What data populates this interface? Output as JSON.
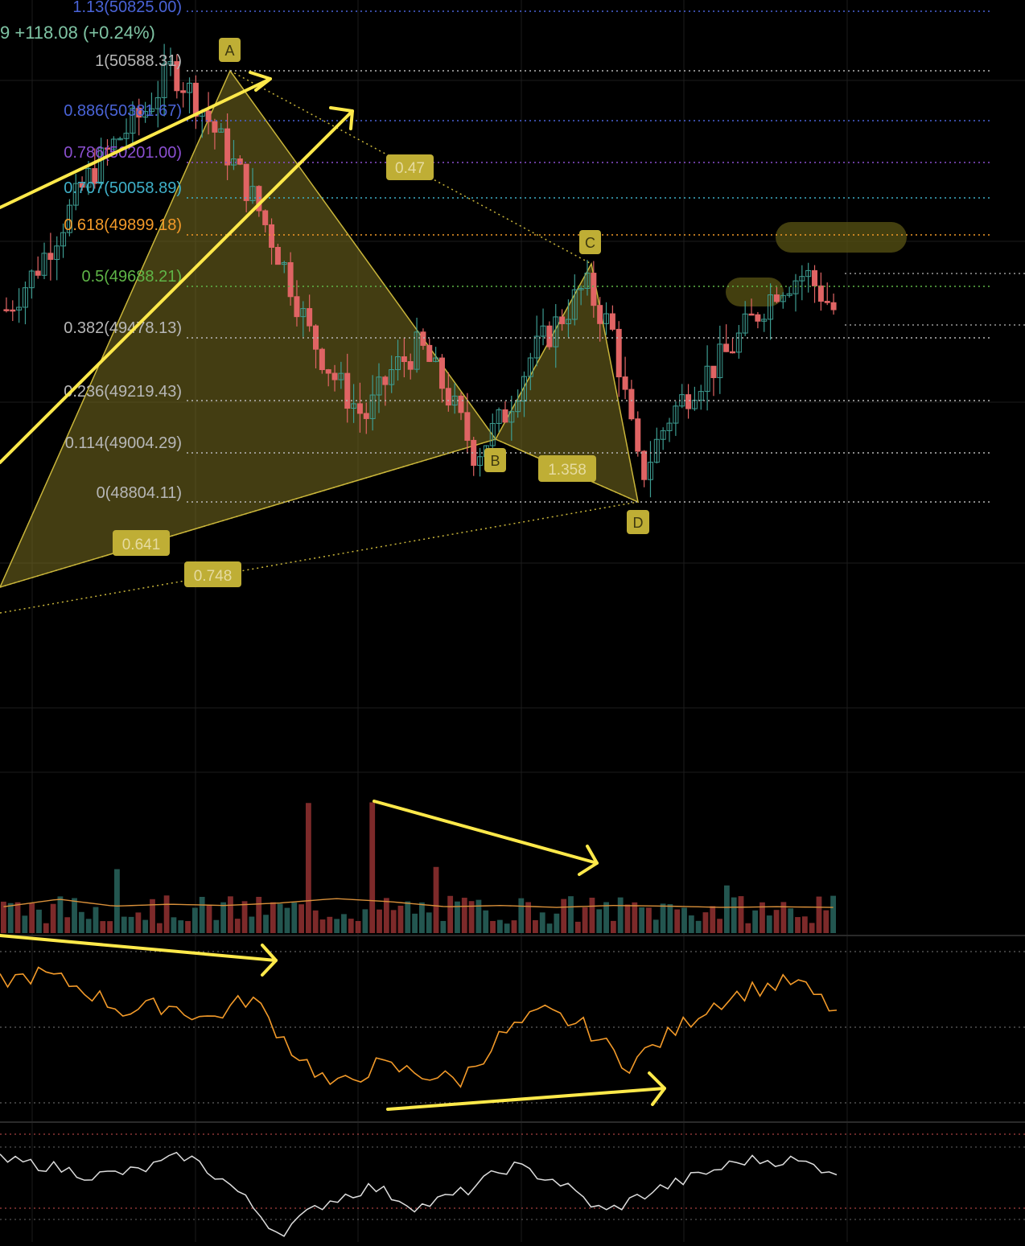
{
  "header": {
    "price_change": "9  +118.08 (+0.24%)"
  },
  "fib_levels": [
    {
      "label": "1.13(50825.00)",
      "color": "#4a64d8"
    },
    {
      "label": "1(50588.31)",
      "color": "#b7b7b7"
    },
    {
      "label": "0.886(50381.67)",
      "color": "#4a64d8"
    },
    {
      "label": "0.786(50201.00)",
      "color": "#8b4fd0"
    },
    {
      "label": "0.707(50058.89)",
      "color": "#3fb0c8"
    },
    {
      "label": "0.618(49899.18)",
      "color": "#f39a29"
    },
    {
      "label": "0.5(49688.21)",
      "color": "#5fb547"
    },
    {
      "label": "0.382(49478.13)",
      "color": "#b7b7b7"
    },
    {
      "label": "0.236(49219.43)",
      "color": "#b7b7b7"
    },
    {
      "label": "0.114(49004.29)",
      "color": "#b7b7b7"
    },
    {
      "label": "0(48804.11)",
      "color": "#b7b7b7"
    }
  ],
  "harmonic_pattern": {
    "points": [
      "A",
      "B",
      "C",
      "D"
    ],
    "ratios": [
      "0.47",
      "1.358",
      "0.641",
      "0.748"
    ],
    "fill_color": "#7a7020",
    "label_color": "#c9b53a"
  },
  "colors": {
    "up_candle": "#3d9c91",
    "down_candle": "#e06464",
    "annotation": "#ffe94a",
    "volume_ma": "#d9903a",
    "oscillator": "#f39a29",
    "rsi": "#dddddd",
    "grid": "#1c1c1c"
  },
  "chart_data": {
    "type": "candlestick",
    "price_axis_levels": [
      50588.31,
      50381.67,
      50201.0,
      50058.89,
      49899.18,
      49688.21,
      49478.13,
      49219.43,
      49004.29,
      48804.11
    ],
    "pattern_points": {
      "A": 50600,
      "B": 49040,
      "C": 49800,
      "D": 48820
    },
    "close_path": [
      49600,
      49750,
      49950,
      50150,
      50300,
      50420,
      50600,
      50450,
      50250,
      50050,
      49800,
      49500,
      49300,
      49150,
      49350,
      49450,
      49250,
      49000,
      49150,
      49400,
      49550,
      49700,
      49500,
      48900,
      49150,
      49300,
      49400,
      49550,
      49700,
      49750,
      49600
    ],
    "volume_relative": [
      0.35,
      0.95,
      0.4,
      0.55,
      0.45,
      0.65,
      1.0,
      0.75,
      0.35,
      0.45,
      0.3,
      0.45,
      0.4,
      0.3,
      0.35,
      0.3
    ],
    "oscillator_relative": [
      0.8,
      0.85,
      0.75,
      0.6,
      0.65,
      0.55,
      0.7,
      0.35,
      0.1,
      0.25,
      0.2,
      0.15,
      0.45,
      0.6,
      0.5,
      0.25,
      0.45,
      0.65,
      0.75,
      0.8,
      0.6
    ],
    "rsi_relative": [
      0.75,
      0.7,
      0.6,
      0.65,
      0.8,
      0.5,
      0.05,
      0.35,
      0.5,
      0.3,
      0.45,
      0.7,
      0.55,
      0.25,
      0.45,
      0.6,
      0.75,
      0.75,
      0.65
    ]
  }
}
